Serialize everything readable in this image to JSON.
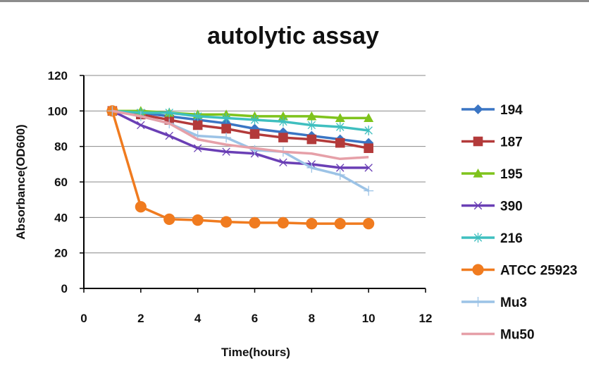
{
  "chart_data": {
    "type": "line",
    "title": "autolytic assay",
    "xlabel": "Time(hours)",
    "ylabel": "Absorbance(OD600)",
    "xlim": [
      0,
      12
    ],
    "ylim": [
      0,
      120
    ],
    "x_ticks": [
      0,
      2,
      4,
      6,
      8,
      10,
      12
    ],
    "y_ticks": [
      0,
      20,
      40,
      60,
      80,
      100,
      120
    ],
    "grid": "horizontal",
    "legend_position": "right",
    "x": [
      1,
      2,
      3,
      4,
      5,
      6,
      7,
      8,
      9,
      10
    ],
    "series": [
      {
        "name": "194",
        "color": "#3a75c4",
        "marker": "diamond",
        "values": [
          100,
          99,
          97,
          95,
          93,
          90,
          88,
          86,
          84,
          82
        ]
      },
      {
        "name": "187",
        "color": "#b33a3a",
        "marker": "square",
        "values": [
          100,
          98,
          95,
          92,
          90,
          87,
          85,
          84,
          82,
          79
        ]
      },
      {
        "name": "195",
        "color": "#7fc31c",
        "marker": "triangle",
        "values": [
          100,
          100,
          99,
          98,
          98,
          97,
          97,
          97,
          96,
          96
        ]
      },
      {
        "name": "390",
        "color": "#6a3fb5",
        "marker": "x",
        "values": [
          100,
          92,
          86,
          79,
          77,
          76,
          71,
          70,
          68,
          68
        ]
      },
      {
        "name": "216",
        "color": "#3fbfbf",
        "marker": "asterisk",
        "values": [
          100,
          99,
          99,
          97,
          96,
          95,
          94,
          92,
          91,
          89
        ]
      },
      {
        "name": "ATCC 25923",
        "color": "#f07b1f",
        "marker": "circle",
        "values": [
          100,
          46,
          39,
          38.5,
          37.5,
          37,
          37,
          36.5,
          36.5,
          36.5
        ]
      },
      {
        "name": "Mu3",
        "color": "#9cc3e6",
        "marker": "plus",
        "values": [
          100,
          97,
          93,
          86,
          85,
          78,
          77,
          68,
          64,
          55
        ]
      },
      {
        "name": "Mu50",
        "color": "#e6a0a8",
        "marker": "none",
        "values": [
          100,
          97,
          93,
          84,
          81,
          79,
          77,
          76,
          73,
          74
        ]
      }
    ]
  }
}
